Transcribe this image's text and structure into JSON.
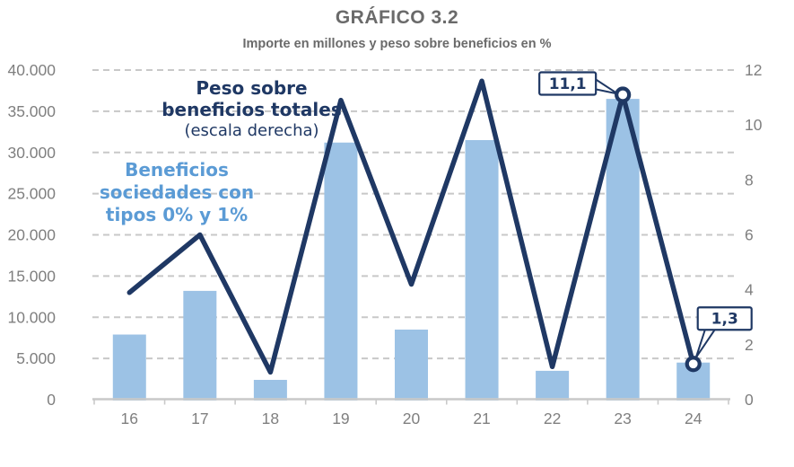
{
  "title": "GRÁFICO 3.2",
  "subtitle": "Importe en millones y peso sobre beneficios en %",
  "annotations": {
    "line_series": {
      "lines": [
        "Peso sobre",
        "beneficios totales"
      ],
      "sublabel": "(escala derecha)"
    },
    "bar_series": {
      "lines": [
        "Beneficios",
        "sociedades con",
        "tipos 0% y 1%"
      ]
    }
  },
  "chart_data": {
    "type": "combo-bar-line",
    "categories": [
      "16",
      "17",
      "18",
      "19",
      "20",
      "21",
      "22",
      "23",
      "24"
    ],
    "series": [
      {
        "name": "Beneficios sociedades con tipos 0% y 1%",
        "type": "bar",
        "axis": "left",
        "unit": "millones",
        "values": [
          7900,
          13200,
          2400,
          31200,
          8500,
          31500,
          3500,
          36500,
          4500
        ]
      },
      {
        "name": "Peso sobre beneficios totales (escala derecha)",
        "type": "line",
        "axis": "right",
        "unit": "%",
        "values": [
          3.9,
          6.0,
          1.0,
          10.9,
          4.2,
          11.6,
          1.2,
          11.1,
          1.3
        ],
        "callouts": [
          {
            "category": "23",
            "label": "11,1",
            "position": "above-left"
          },
          {
            "category": "24",
            "label": "1,3",
            "position": "above-right"
          }
        ]
      }
    ],
    "left_axis": {
      "min": 0,
      "max": 40000,
      "step": 5000,
      "tick_labels": [
        "0",
        "5.000",
        "10.000",
        "15.000",
        "20.000",
        "25.000",
        "30.000",
        "35.000",
        "40.000"
      ]
    },
    "right_axis": {
      "min": 0,
      "max": 12,
      "step": 2,
      "tick_labels": [
        "0",
        "2",
        "4",
        "6",
        "8",
        "10",
        "12"
      ]
    },
    "grid": "horizontal-dashed",
    "legend": "none"
  },
  "colors": {
    "bar_fill": "#9CC2E5",
    "line_stroke": "#1F3864",
    "navy_text": "#1F3864",
    "blue_text": "#5B9BD5",
    "title_text": "#6A6A6A",
    "axis_text": "#7F7F7F",
    "gridline": "#C8C8C8",
    "axis_line": "#C9C9C9",
    "callout_bg": "#FFFFFF"
  }
}
